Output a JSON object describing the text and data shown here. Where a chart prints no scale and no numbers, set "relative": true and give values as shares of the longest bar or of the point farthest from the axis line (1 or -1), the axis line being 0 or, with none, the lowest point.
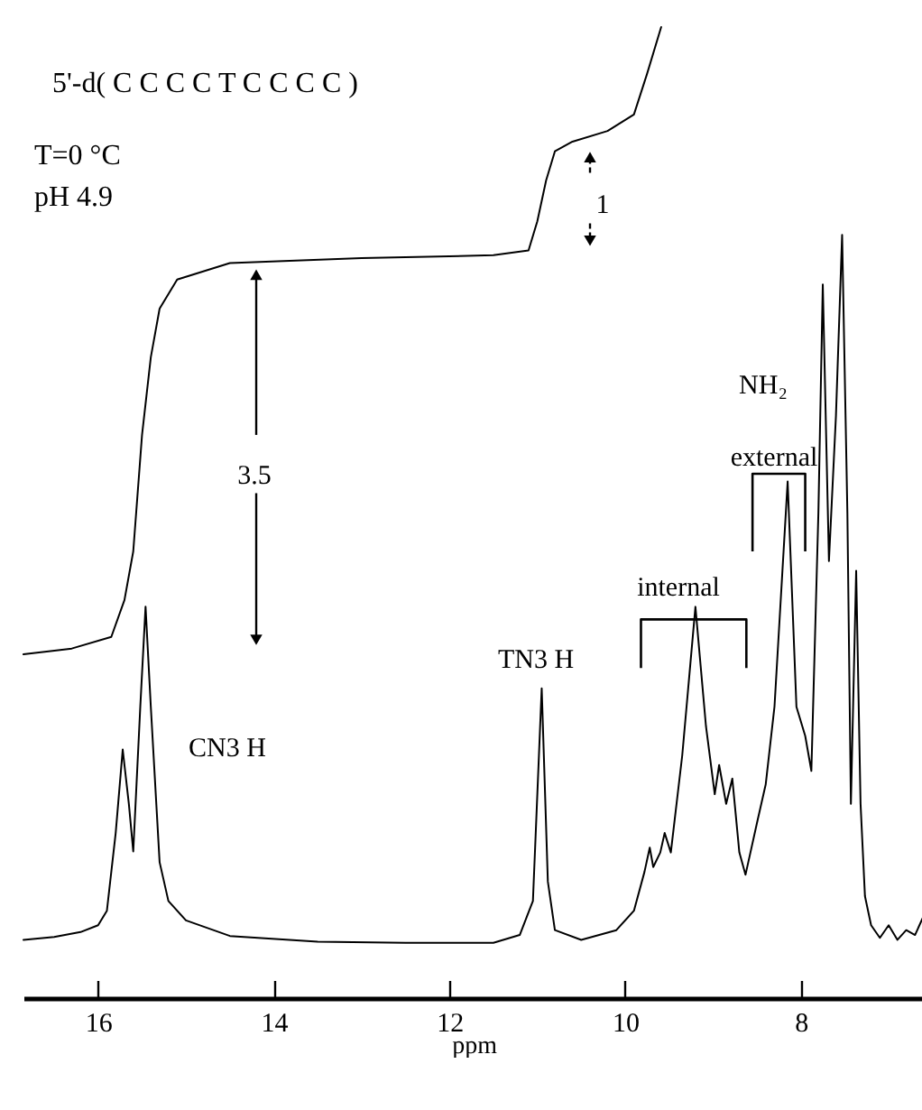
{
  "chart_data": {
    "type": "line",
    "relative": true,
    "xlabel": "ppm",
    "xlim": [
      16.85,
      6.6
    ],
    "xticks": [
      16,
      14,
      12,
      10,
      8
    ],
    "grid": false,
    "line_style": "solid",
    "series": [
      {
        "color": "#000000",
        "x": [
          16.85,
          16.5,
          16.2,
          16.0,
          15.9,
          15.8,
          15.72,
          15.65,
          15.6,
          15.52,
          15.46,
          15.4,
          15.3,
          15.2,
          15.0,
          14.5,
          13.5,
          12.5,
          11.5,
          11.2,
          11.05,
          10.95,
          10.88,
          10.8,
          10.5,
          10.1,
          9.9,
          9.78,
          9.72,
          9.68,
          9.6,
          9.55,
          9.48,
          9.35,
          9.2,
          9.08,
          8.98,
          8.93,
          8.85,
          8.78,
          8.7,
          8.63,
          8.5,
          8.4,
          8.3,
          8.15,
          8.05,
          7.95,
          7.88,
          7.8,
          7.75,
          7.68,
          7.6,
          7.53,
          7.47,
          7.43,
          7.37,
          7.32,
          7.27,
          7.2,
          7.1,
          7.0,
          6.9,
          6.8,
          6.7,
          6.6
        ],
        "values": [
          0.06,
          0.063,
          0.068,
          0.075,
          0.09,
          0.17,
          0.256,
          0.2,
          0.151,
          0.3,
          0.403,
          0.3,
          0.14,
          0.1,
          0.08,
          0.064,
          0.058,
          0.057,
          0.057,
          0.065,
          0.1,
          0.319,
          0.12,
          0.07,
          0.06,
          0.07,
          0.09,
          0.13,
          0.155,
          0.135,
          0.15,
          0.17,
          0.15,
          0.25,
          0.403,
          0.28,
          0.21,
          0.24,
          0.2,
          0.226,
          0.15,
          0.127,
          0.18,
          0.22,
          0.3,
          0.532,
          0.3,
          0.27,
          0.234,
          0.5,
          0.735,
          0.45,
          0.6,
          0.786,
          0.5,
          0.2,
          0.44,
          0.2,
          0.105,
          0.075,
          0.062,
          0.075,
          0.06,
          0.07,
          0.065,
          0.085
        ]
      },
      {
        "color": "#000000",
        "x": [
          16.85,
          16.3,
          15.85,
          15.7,
          15.6,
          15.5,
          15.4,
          15.3,
          15.1,
          14.5,
          13,
          11.5,
          11.1,
          11.0,
          10.9,
          10.8,
          10.6,
          10.2,
          9.9,
          9.75,
          9.59
        ],
        "values": [
          0.354,
          0.36,
          0.372,
          0.41,
          0.46,
          0.58,
          0.66,
          0.71,
          0.74,
          0.757,
          0.762,
          0.765,
          0.77,
          0.8,
          0.842,
          0.872,
          0.882,
          0.893,
          0.91,
          0.952,
          1.0
        ]
      }
    ],
    "annotations": [
      "5'-d( C C C C T C C C C )",
      "T=0 °C",
      "pH 4.9",
      "3.5",
      "1",
      "CN3 H",
      "TN3 H",
      "internal",
      "external",
      "NH₂"
    ]
  }
}
